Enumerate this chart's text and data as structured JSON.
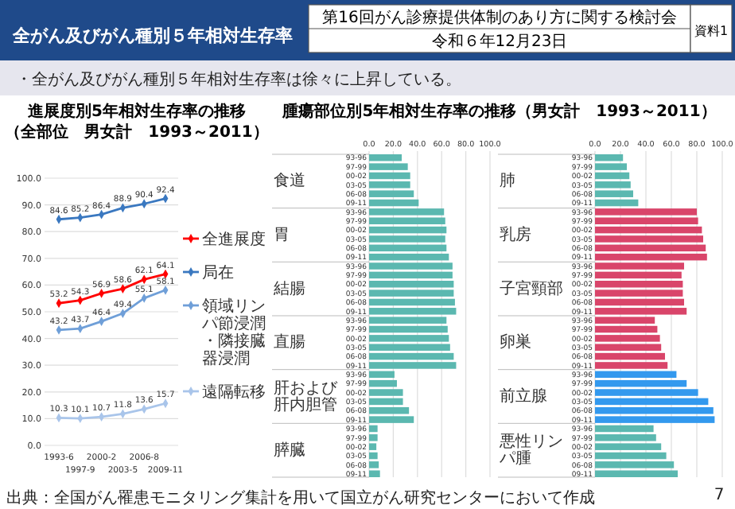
{
  "chart_data": [
    {
      "type": "other",
      "title": "全がん及びがん種別５年相対生存率",
      "subtitle": "・全がん及びがん種別５年相対生存率は徐々に上昇している。",
      "annotations": [
        "第16回がん診療提供体制のあり方に関する検討会",
        "令和６年12月23日",
        "資料1",
        "出典：全国がん罹患モニタリング集計を用いて国立がん研究センターにおいて作成",
        "7"
      ]
    },
    {
      "type": "line",
      "title": "進展度別5年相対生存率の推移",
      "subtitle": "（全部位　男女計　1993～2011）",
      "categories": [
        "1993-6",
        "1997-9",
        "2000-2",
        "2003-5",
        "2006-8",
        "2009-11"
      ],
      "series": [
        {
          "name": "全進展度",
          "color": "#ff0000",
          "values": [
            53.2,
            54.3,
            56.9,
            58.6,
            62.1,
            64.1
          ]
        },
        {
          "name": "局在",
          "color": "#3a78c0",
          "values": [
            84.6,
            85.2,
            86.4,
            88.9,
            90.4,
            92.4
          ]
        },
        {
          "name": "領域リンパ節浸潤・隣接臓器浸潤",
          "color": "#6f9fd8",
          "values": [
            43.2,
            43.7,
            46.4,
            49.4,
            55.1,
            58.1
          ]
        },
        {
          "name": "遠隔転移",
          "color": "#a9c5ea",
          "values": [
            10.3,
            10.1,
            10.7,
            11.8,
            13.6,
            15.7
          ]
        }
      ],
      "ylim": [
        0,
        100
      ],
      "yticks": [
        {
          "value": 0,
          "label": "0.0"
        },
        {
          "value": 10,
          "label": "10.0"
        },
        {
          "value": 20,
          "label": "20.0"
        },
        {
          "value": 30,
          "label": "30.0"
        },
        {
          "value": 40,
          "label": "40.0"
        },
        {
          "value": 50,
          "label": "50.0"
        },
        {
          "value": 60,
          "label": "60.0"
        },
        {
          "value": 70,
          "label": "70.0"
        },
        {
          "value": 80,
          "label": "80.0"
        },
        {
          "value": 90,
          "label": "90.0"
        },
        {
          "value": 100,
          "label": "100.0"
        }
      ],
      "grid": "y",
      "legend": "right",
      "marker": "diamond",
      "data_labels": true
    },
    {
      "type": "bar",
      "orientation": "horizontal",
      "title": "腫瘍部位別5年相対生存率の推移（男女計　1993～2011）",
      "categories": [
        "93-96",
        "97-99",
        "00-02",
        "03-05",
        "06-08",
        "09-11",
        "93-96",
        "97-99",
        "00-02",
        "03-05",
        "06-08",
        "09-11",
        "93-96",
        "97-99",
        "00-02",
        "03-05",
        "06-08",
        "09-11",
        "93-96",
        "97-99",
        "00-02",
        "03-05",
        "06-08",
        "09-11",
        "93-96",
        "97-99",
        "00-02",
        "03-05",
        "06-08",
        "09-11",
        "93-96",
        "97-99",
        "00-02",
        "03-05",
        "06-08",
        "09-11"
      ],
      "values": [
        27,
        32,
        34,
        34,
        37,
        41,
        62,
        63,
        64,
        63,
        64,
        66,
        69,
        69,
        70,
        70,
        71,
        72,
        64,
        65,
        66,
        67,
        70,
        72,
        21,
        23,
        28,
        28,
        33,
        37,
        7,
        7,
        6,
        7,
        8,
        9
      ],
      "colors": [
        "#5bb8b0",
        "#5bb8b0",
        "#5bb8b0",
        "#5bb8b0",
        "#5bb8b0",
        "#5bb8b0",
        "#5bb8b0",
        "#5bb8b0",
        "#5bb8b0",
        "#5bb8b0",
        "#5bb8b0",
        "#5bb8b0",
        "#5bb8b0",
        "#5bb8b0",
        "#5bb8b0",
        "#5bb8b0",
        "#5bb8b0",
        "#5bb8b0",
        "#5bb8b0",
        "#5bb8b0",
        "#5bb8b0",
        "#5bb8b0",
        "#5bb8b0",
        "#5bb8b0",
        "#5bb8b0",
        "#5bb8b0",
        "#5bb8b0",
        "#5bb8b0",
        "#5bb8b0",
        "#5bb8b0",
        "#5bb8b0",
        "#5bb8b0",
        "#5bb8b0",
        "#5bb8b0",
        "#5bb8b0",
        "#5bb8b0"
      ],
      "annotations": [
        "食道",
        "胃",
        "結腸",
        "直腸",
        "肝および肝内胆管",
        "膵臓"
      ],
      "xlim": [
        0,
        100
      ],
      "xticks": [
        {
          "value": 0,
          "label": "0.0"
        },
        {
          "value": 20,
          "label": "20.0"
        },
        {
          "value": 40,
          "label": "40.0"
        },
        {
          "value": 60,
          "label": "60.0"
        },
        {
          "value": 80,
          "label": "80.0"
        },
        {
          "value": 100,
          "label": "100.0"
        }
      ],
      "grid": "x"
    },
    {
      "type": "bar",
      "orientation": "horizontal",
      "categories": [
        "93-96",
        "97-99",
        "00-02",
        "03-05",
        "06-08",
        "09-11",
        "93-96",
        "97-99",
        "00-02",
        "03-05",
        "06-08",
        "09-11",
        "93-96",
        "97-99",
        "00-02",
        "03-05",
        "06-08",
        "09-11",
        "93-96",
        "97-99",
        "00-02",
        "03-05",
        "06-08",
        "09-11",
        "93-96",
        "97-99",
        "00-02",
        "03-05",
        "06-08",
        "09-11",
        "93-96",
        "97-99",
        "00-02",
        "03-05",
        "06-08",
        "09-11"
      ],
      "values": [
        22,
        25,
        27,
        28,
        30,
        34,
        80,
        81,
        84,
        85,
        87,
        88,
        70,
        68,
        69,
        69,
        70,
        72,
        47,
        49,
        51,
        52,
        55,
        57,
        64,
        72,
        81,
        89,
        93,
        94,
        46,
        48,
        52,
        56,
        62,
        65
      ],
      "colors": [
        "#5bb8b0",
        "#5bb8b0",
        "#5bb8b0",
        "#5bb8b0",
        "#5bb8b0",
        "#5bb8b0",
        "#d9456a",
        "#d9456a",
        "#d9456a",
        "#d9456a",
        "#d9456a",
        "#d9456a",
        "#d9456a",
        "#d9456a",
        "#d9456a",
        "#d9456a",
        "#d9456a",
        "#d9456a",
        "#d9456a",
        "#d9456a",
        "#d9456a",
        "#d9456a",
        "#d9456a",
        "#d9456a",
        "#3399ee",
        "#3399ee",
        "#3399ee",
        "#3399ee",
        "#3399ee",
        "#3399ee",
        "#5bb8b0",
        "#5bb8b0",
        "#5bb8b0",
        "#5bb8b0",
        "#5bb8b0",
        "#5bb8b0"
      ],
      "annotations": [
        "肺",
        "乳房",
        "子宮頸部",
        "卵巣",
        "前立腺",
        "悪性リンパ腫"
      ],
      "xlim": [
        0,
        100
      ],
      "xticks": [
        {
          "value": 0,
          "label": "0.0"
        },
        {
          "value": 20,
          "label": "20.0"
        },
        {
          "value": 40,
          "label": "40.0"
        },
        {
          "value": 60,
          "label": "60.0"
        },
        {
          "value": 80,
          "label": "80.0"
        },
        {
          "value": 100,
          "label": "100.0"
        }
      ],
      "grid": "x"
    }
  ]
}
